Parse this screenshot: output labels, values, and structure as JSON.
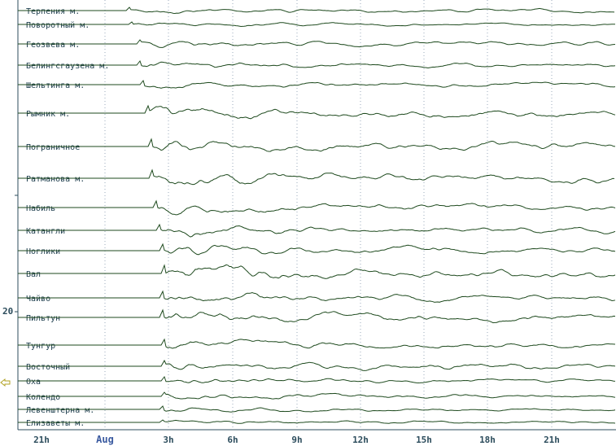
{
  "stations": [
    "Терпения м.",
    "Поворотный м.",
    "Геозвева м.",
    "Белингсгаузена м.",
    "Шельтинга м.",
    "Рымник м.",
    "Пограничное",
    "Ратманова м.",
    "Набиль",
    "Катангли",
    "Ноглики",
    "Вал",
    "Чайво",
    "Пильтун",
    "Тунгур",
    "Восточный",
    "Оха",
    "Колендо",
    "Левенштерна м.",
    "Елизаветы м."
  ],
  "time_labels": [
    "21h",
    "Aug",
    "3h",
    "6h",
    "9h",
    "12h",
    "15h",
    "18h",
    "21h"
  ],
  "axis_label": "20"
}
